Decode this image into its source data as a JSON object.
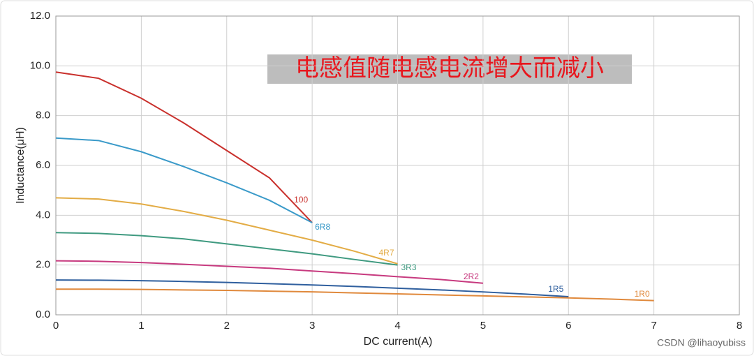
{
  "chart_data": {
    "type": "line",
    "annotation": "电感值随电感电流增大而减小",
    "x_label": "DC current(A)",
    "y_label": "Inductance(μH)",
    "watermark": "CSDN @lihaoyubiss",
    "x": [
      0,
      0.5,
      1,
      1.5,
      2,
      2.5,
      3,
      3.5,
      4,
      4.5,
      5,
      5.5,
      6,
      6.5,
      7
    ],
    "xlim": [
      0,
      8
    ],
    "xticks": [
      0,
      1,
      2,
      3,
      4,
      5,
      6,
      7,
      8
    ],
    "ylim": [
      0,
      12
    ],
    "yticks": [
      {
        "value": 0,
        "label": "0.0"
      },
      {
        "value": 2,
        "label": "2.0"
      },
      {
        "value": 4,
        "label": "4.0"
      },
      {
        "value": 6,
        "label": "6.0"
      },
      {
        "value": 8,
        "label": "8.0"
      },
      {
        "value": 10,
        "label": "10.0"
      },
      {
        "value": 12,
        "label": "12.0"
      }
    ],
    "grid": true,
    "series": [
      {
        "name": "100",
        "color": "#c9302c",
        "values": [
          9.75,
          9.5,
          8.7,
          7.7,
          6.6,
          5.5,
          3.7,
          null,
          null,
          null,
          null,
          null,
          null,
          null,
          null
        ]
      },
      {
        "name": "6R8",
        "color": "#3a9ac9",
        "values": [
          7.1,
          7.0,
          6.55,
          5.95,
          5.3,
          4.6,
          3.7,
          null,
          null,
          null,
          null,
          null,
          null,
          null,
          null
        ]
      },
      {
        "name": "4R7",
        "color": "#e3ac45",
        "values": [
          4.7,
          4.65,
          4.45,
          4.15,
          3.8,
          3.4,
          3.0,
          2.55,
          2.05,
          null,
          null,
          null,
          null,
          null,
          null
        ]
      },
      {
        "name": "3R3",
        "color": "#3f9a80",
        "values": [
          3.3,
          3.27,
          3.18,
          3.05,
          2.85,
          2.65,
          2.45,
          2.22,
          2.0,
          null,
          null,
          null,
          null,
          null,
          null
        ]
      },
      {
        "name": "2R2",
        "color": "#c73a7f",
        "values": [
          2.17,
          2.15,
          2.1,
          2.03,
          1.95,
          1.87,
          1.76,
          1.65,
          1.53,
          1.42,
          1.27,
          null,
          null,
          null,
          null
        ]
      },
      {
        "name": "1R5",
        "color": "#2f5f9e",
        "values": [
          1.4,
          1.39,
          1.37,
          1.34,
          1.3,
          1.25,
          1.2,
          1.14,
          1.07,
          1.0,
          0.92,
          0.83,
          0.73,
          null,
          null
        ]
      },
      {
        "name": "1R0",
        "color": "#e0893c",
        "values": [
          1.03,
          1.03,
          1.02,
          1.0,
          0.98,
          0.95,
          0.92,
          0.88,
          0.84,
          0.8,
          0.76,
          0.72,
          0.68,
          0.63,
          0.57
        ]
      }
    ]
  }
}
